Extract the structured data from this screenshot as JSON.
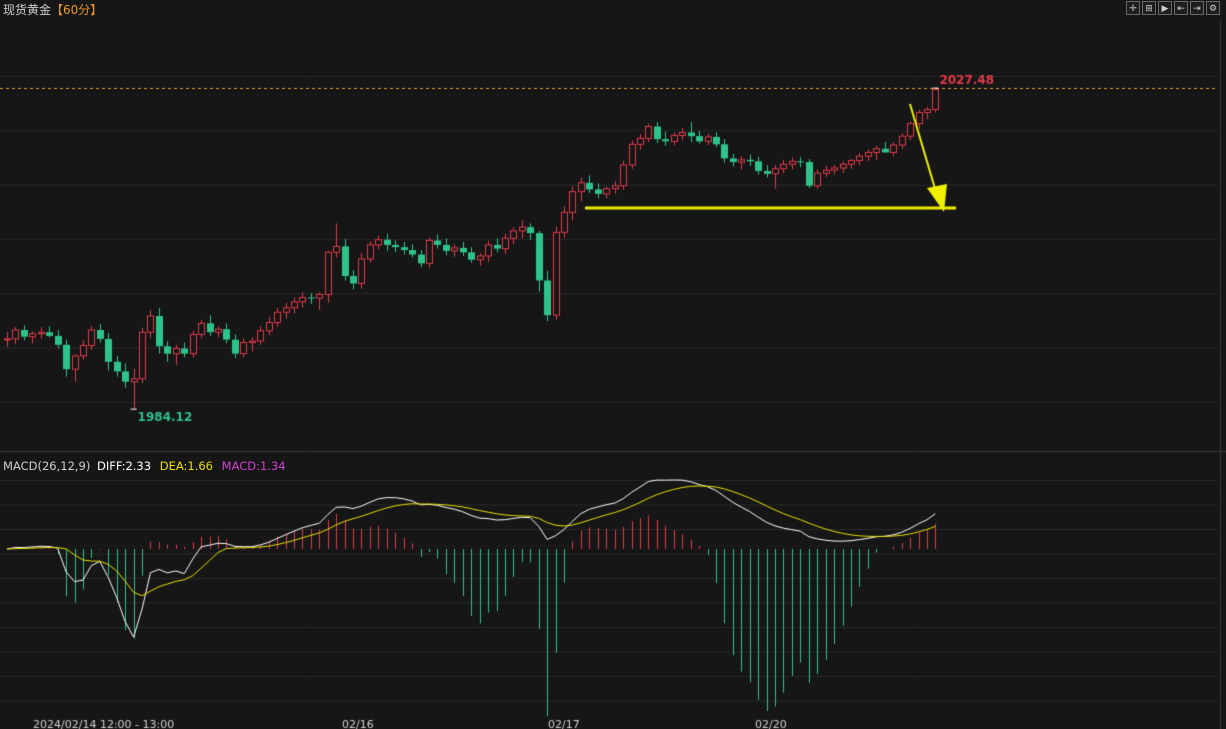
{
  "header": {
    "instrument": "现货黄金",
    "timeframe": "【60分】"
  },
  "toolbar": {
    "icons": [
      "crosshair-icon",
      "zoom-icon",
      "play-icon",
      "prev-icon",
      "next-icon",
      "settings-icon"
    ],
    "glyphs": [
      "✛",
      "⊞",
      "▶",
      "⇤",
      "⇥",
      "⚙"
    ]
  },
  "macd": {
    "title": "MACD(26,12,9)",
    "diff_label": "DIFF:2.33",
    "dea_label": "DEA:1.66",
    "macd_label": "MACD:1.34",
    "colors": {
      "diff": "#ffffff",
      "dea": "#e8e000",
      "macd": "#d040d0"
    }
  },
  "chart_data": {
    "type": "candlestick",
    "annotations": {
      "high_label": "2027.48",
      "low_label": "1984.12",
      "support_color": "#f0f000",
      "arrow_color": "#f0f000"
    },
    "current_price": 2027.48,
    "price_range": [
      1980.2,
      2034.0
    ],
    "x_labels": [
      "2024/02/14 12:00 - 13:00",
      "02/16",
      "02/17",
      "02/20"
    ],
    "colors": {
      "up": "#e03a4a",
      "down": "#2ec38a"
    },
    "candles": [
      [
        1993.5,
        1994.5,
        1992.5,
        1993.6
      ],
      [
        1993.6,
        1995.2,
        1992.9,
        1994.8
      ],
      [
        1994.8,
        1995.4,
        1993.4,
        1993.9
      ],
      [
        1993.9,
        1994.6,
        1993.0,
        1994.3
      ],
      [
        1994.3,
        1995.2,
        1993.6,
        1994.5
      ],
      [
        1994.5,
        1995.3,
        1993.8,
        1994.0
      ],
      [
        1994.0,
        1994.8,
        1992.3,
        1992.8
      ],
      [
        1992.8,
        1993.5,
        1988.5,
        1989.5
      ],
      [
        1989.5,
        1991.5,
        1987.8,
        1991.3
      ],
      [
        1991.3,
        1993.4,
        1990.8,
        1992.7
      ],
      [
        1992.7,
        1995.3,
        1992.1,
        1994.8
      ],
      [
        1994.8,
        1995.6,
        1993.1,
        1993.6
      ],
      [
        1993.6,
        1994.4,
        1989.3,
        1990.5
      ],
      [
        1990.5,
        1991.3,
        1988.5,
        1989.2
      ],
      [
        1989.2,
        1990.3,
        1987.0,
        1987.8
      ],
      [
        1987.8,
        1989.6,
        1984.1,
        1988.2
      ],
      [
        1988.2,
        1995.1,
        1987.6,
        1994.5
      ],
      [
        1994.5,
        1997.5,
        1993.7,
        1996.7
      ],
      [
        1996.7,
        1997.8,
        1991.6,
        1992.6
      ],
      [
        1992.6,
        1993.3,
        1990.5,
        1991.6
      ],
      [
        1991.6,
        1992.8,
        1990.1,
        1992.3
      ],
      [
        1992.3,
        1993.1,
        1991.1,
        1991.6
      ],
      [
        1991.6,
        1994.7,
        1991.1,
        1994.2
      ],
      [
        1994.2,
        1996.2,
        1993.7,
        1995.7
      ],
      [
        1995.7,
        1996.8,
        1994.0,
        1994.5
      ],
      [
        1994.5,
        1995.3,
        1993.8,
        1994.9
      ],
      [
        1994.9,
        1995.7,
        1993.0,
        1993.5
      ],
      [
        1993.5,
        1994.2,
        1991.0,
        1991.6
      ],
      [
        1991.6,
        1993.7,
        1991.1,
        1993.1
      ],
      [
        1993.1,
        1993.8,
        1991.9,
        1993.3
      ],
      [
        1993.3,
        1995.3,
        1992.8,
        1994.7
      ],
      [
        1994.7,
        1996.6,
        1994.1,
        1995.8
      ],
      [
        1995.8,
        1997.8,
        1995.2,
        1997.2
      ],
      [
        1997.2,
        1998.5,
        1996.3,
        1997.8
      ],
      [
        1997.8,
        1999.2,
        1997.0,
        1998.6
      ],
      [
        1998.6,
        1999.9,
        1997.8,
        1999.2
      ],
      [
        1999.2,
        1999.8,
        1998.3,
        1999.1
      ],
      [
        1999.1,
        1999.9,
        1997.5,
        1999.6
      ],
      [
        1999.6,
        2005.5,
        1998.5,
        2005.3
      ],
      [
        2005.3,
        2009.2,
        2004.6,
        2006.1
      ],
      [
        2006.1,
        2007.1,
        2001.5,
        2002.1
      ],
      [
        2002.1,
        2002.9,
        2000.3,
        2001.1
      ],
      [
        2001.1,
        2005.2,
        2000.4,
        2004.4
      ],
      [
        2004.4,
        2006.8,
        2003.9,
        2006.3
      ],
      [
        2006.3,
        2007.6,
        2005.7,
        2007.0
      ],
      [
        2007.0,
        2007.8,
        2005.5,
        2006.3
      ],
      [
        2006.3,
        2006.9,
        2005.3,
        2006.0
      ],
      [
        2006.0,
        2006.7,
        2005.0,
        2005.6
      ],
      [
        2005.6,
        2006.4,
        2004.6,
        2005.0
      ],
      [
        2005.0,
        2005.6,
        2003.3,
        2003.8
      ],
      [
        2003.8,
        2007.3,
        2003.2,
        2006.9
      ],
      [
        2006.9,
        2007.7,
        2005.8,
        2006.3
      ],
      [
        2006.3,
        2007.2,
        2004.9,
        2005.5
      ],
      [
        2005.5,
        2006.4,
        2004.7,
        2005.9
      ],
      [
        2005.9,
        2006.7,
        2004.8,
        2005.3
      ],
      [
        2005.3,
        2006.0,
        2003.9,
        2004.3
      ],
      [
        2004.3,
        2005.2,
        2003.5,
        2004.8
      ],
      [
        2004.8,
        2006.9,
        2004.0,
        2006.3
      ],
      [
        2006.3,
        2007.2,
        2005.3,
        2005.8
      ],
      [
        2005.8,
        2007.8,
        2005.1,
        2007.2
      ],
      [
        2007.2,
        2008.7,
        2006.4,
        2008.2
      ],
      [
        2008.2,
        2009.6,
        2007.2,
        2008.7
      ],
      [
        2008.7,
        2009.2,
        2007.0,
        2007.9
      ],
      [
        2007.9,
        2008.2,
        2000.0,
        2001.5
      ],
      [
        2001.5,
        2002.8,
        1996.0,
        1996.8
      ],
      [
        1996.8,
        2008.8,
        1996.2,
        2008.0
      ],
      [
        2008.0,
        2011.5,
        2007.3,
        2010.7
      ],
      [
        2010.7,
        2014.2,
        2009.6,
        2013.5
      ],
      [
        2013.5,
        2015.4,
        2012.2,
        2014.7
      ],
      [
        2014.7,
        2015.7,
        2013.3,
        2013.8
      ],
      [
        2013.8,
        2014.6,
        2012.6,
        2013.2
      ],
      [
        2013.2,
        2014.2,
        2012.6,
        2013.9
      ],
      [
        2013.9,
        2014.9,
        2013.2,
        2014.3
      ],
      [
        2014.3,
        2017.7,
        2013.7,
        2017.1
      ],
      [
        2017.1,
        2020.4,
        2016.6,
        2019.9
      ],
      [
        2019.9,
        2021.3,
        2019.2,
        2020.7
      ],
      [
        2020.7,
        2022.7,
        2020.2,
        2022.3
      ],
      [
        2022.3,
        2022.9,
        2020.1,
        2020.6
      ],
      [
        2020.6,
        2021.6,
        2019.7,
        2020.3
      ],
      [
        2020.3,
        2021.5,
        2019.8,
        2021.1
      ],
      [
        2021.1,
        2022.1,
        2020.5,
        2021.5
      ],
      [
        2021.5,
        2022.9,
        2020.2,
        2021.0
      ],
      [
        2021.0,
        2021.7,
        2020.0,
        2020.3
      ],
      [
        2020.3,
        2021.3,
        2019.8,
        2020.9
      ],
      [
        2020.9,
        2021.5,
        2019.5,
        2019.9
      ],
      [
        2019.9,
        2020.6,
        2017.4,
        2018.0
      ],
      [
        2018.0,
        2018.6,
        2016.9,
        2017.5
      ],
      [
        2017.5,
        2018.3,
        2016.5,
        2017.8
      ],
      [
        2017.8,
        2018.5,
        2017.0,
        2017.6
      ],
      [
        2017.6,
        2018.2,
        2015.8,
        2016.3
      ],
      [
        2016.3,
        2017.1,
        2015.4,
        2015.9
      ],
      [
        2015.9,
        2017.1,
        2013.9,
        2016.6
      ],
      [
        2016.6,
        2017.8,
        2016.0,
        2017.2
      ],
      [
        2017.2,
        2018.1,
        2016.5,
        2017.6
      ],
      [
        2017.6,
        2018.2,
        2016.8,
        2017.5
      ],
      [
        2017.5,
        2017.9,
        2014.0,
        2014.3
      ],
      [
        2014.3,
        2016.5,
        2013.9,
        2016.0
      ],
      [
        2016.0,
        2017.0,
        2015.5,
        2016.4
      ],
      [
        2016.4,
        2017.1,
        2015.8,
        2016.7
      ],
      [
        2016.7,
        2017.6,
        2016.0,
        2017.2
      ],
      [
        2017.2,
        2017.9,
        2016.6,
        2017.7
      ],
      [
        2017.7,
        2018.7,
        2017.1,
        2018.3
      ],
      [
        2018.3,
        2019.2,
        2017.6,
        2018.8
      ],
      [
        2018.8,
        2019.7,
        2017.8,
        2019.3
      ],
      [
        2019.3,
        2020.2,
        2018.8,
        2018.8
      ],
      [
        2018.8,
        2020.2,
        2018.3,
        2019.8
      ],
      [
        2019.8,
        2021.4,
        2019.3,
        2021.0
      ],
      [
        2021.0,
        2023.0,
        2020.5,
        2022.7
      ],
      [
        2022.7,
        2024.6,
        2022.0,
        2024.2
      ],
      [
        2024.2,
        2025.0,
        2023.3,
        2024.6
      ],
      [
        2024.6,
        2027.5,
        2024.2,
        2027.3
      ]
    ]
  }
}
